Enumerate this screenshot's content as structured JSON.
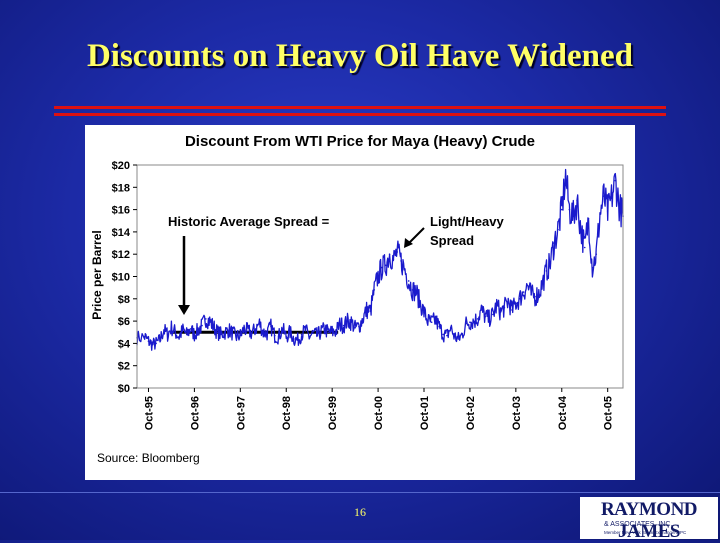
{
  "slide": {
    "title": "Discounts on Heavy Oil Have Widened",
    "page_number": "16",
    "logo": {
      "main": "RAYMOND JAMES",
      "sub": "& ASSOCIATES, INC.",
      "tagline": "Member New York Stock Exchange/SIPC"
    }
  },
  "colors": {
    "title": "#ffff66",
    "rule": "#dd1111",
    "series": "#1a1acc",
    "average_line": "#000000"
  },
  "chart_data": {
    "type": "line",
    "title": "Discount From WTI Price for Maya (Heavy) Crude",
    "xlabel": "",
    "ylabel": "Price per Barrel",
    "source": "Source: Bloomberg",
    "ylim": [
      0,
      20
    ],
    "yticks": [
      "$20",
      "$18",
      "$16",
      "$14",
      "$12",
      "$10",
      "$8",
      "$6",
      "$4",
      "$2",
      "$0"
    ],
    "xticks": [
      "Oct-95",
      "Oct-96",
      "Oct-97",
      "Oct-98",
      "Oct-99",
      "Oct-00",
      "Oct-01",
      "Oct-02",
      "Oct-03",
      "Oct-04",
      "Oct-05"
    ],
    "annotations": {
      "historic": "Historic Average Spread =",
      "spread_line1": "Light/Heavy",
      "spread_line2": "Spread"
    },
    "average_spread": {
      "value": 5.0,
      "from": "Oct-96",
      "to": "Oct-99"
    },
    "series": [
      {
        "values": [
          [
            "1995-07",
            4.5
          ],
          [
            "1995-09",
            4.6
          ],
          [
            "1995-10",
            4.2
          ],
          [
            "1995-11",
            3.9
          ],
          [
            "1995-12",
            4.0
          ],
          [
            "1996-01",
            4.3
          ],
          [
            "1996-02",
            5.2
          ],
          [
            "1996-03",
            4.8
          ],
          [
            "1996-04",
            5.4
          ],
          [
            "1996-05",
            5.0
          ],
          [
            "1996-06",
            4.6
          ],
          [
            "1996-07",
            5.2
          ],
          [
            "1996-08",
            4.8
          ],
          [
            "1996-09",
            5.3
          ],
          [
            "1996-10",
            4.8
          ],
          [
            "1996-11",
            5.2
          ],
          [
            "1996-12",
            5.6
          ],
          [
            "1997-01",
            6.2
          ],
          [
            "1997-02",
            6.0
          ],
          [
            "1997-03",
            5.5
          ],
          [
            "1997-04",
            5.0
          ],
          [
            "1997-05",
            4.8
          ],
          [
            "1997-06",
            5.0
          ],
          [
            "1997-07",
            5.2
          ],
          [
            "1997-08",
            4.9
          ],
          [
            "1997-09",
            4.6
          ],
          [
            "1997-10",
            4.7
          ],
          [
            "1997-11",
            5.3
          ],
          [
            "1997-12",
            5.1
          ],
          [
            "1998-01",
            4.9
          ],
          [
            "1998-02",
            5.3
          ],
          [
            "1998-03",
            5.8
          ],
          [
            "1998-04",
            5.0
          ],
          [
            "1998-05",
            4.9
          ],
          [
            "1998-06",
            5.5
          ],
          [
            "1998-07",
            4.7
          ],
          [
            "1998-08",
            4.6
          ],
          [
            "1998-09",
            5.3
          ],
          [
            "1998-10",
            4.6
          ],
          [
            "1998-11",
            5.0
          ],
          [
            "1998-12",
            4.4
          ],
          [
            "1999-01",
            4.3
          ],
          [
            "1999-02",
            4.8
          ],
          [
            "1999-03",
            5.2
          ],
          [
            "1999-04",
            4.6
          ],
          [
            "1999-05",
            4.9
          ],
          [
            "1999-06",
            4.7
          ],
          [
            "1999-07",
            5.0
          ],
          [
            "1999-08",
            5.3
          ],
          [
            "1999-09",
            5.0
          ],
          [
            "1999-10",
            5.0
          ],
          [
            "1999-11",
            5.1
          ],
          [
            "1999-12",
            5.7
          ],
          [
            "2000-01",
            5.6
          ],
          [
            "2000-02",
            6.0
          ],
          [
            "2000-03",
            5.9
          ],
          [
            "2000-04",
            5.4
          ],
          [
            "2000-05",
            5.5
          ],
          [
            "2000-06",
            6.2
          ],
          [
            "2000-07",
            7.0
          ],
          [
            "2000-08",
            6.9
          ],
          [
            "2000-09",
            8.8
          ],
          [
            "2000-10",
            10.0
          ],
          [
            "2000-11",
            10.8
          ],
          [
            "2000-12",
            11.0
          ],
          [
            "2001-01",
            12.0
          ],
          [
            "2001-02",
            11.5
          ],
          [
            "2001-03",
            12.2
          ],
          [
            "2001-04",
            11.4
          ],
          [
            "2001-05",
            10.6
          ],
          [
            "2001-06",
            9.6
          ],
          [
            "2001-07",
            8.8
          ],
          [
            "2001-08",
            8.6
          ],
          [
            "2001-09",
            7.6
          ],
          [
            "2001-10",
            6.8
          ],
          [
            "2001-11",
            6.0
          ],
          [
            "2001-12",
            5.9
          ],
          [
            "2002-01",
            6.1
          ],
          [
            "2002-02",
            5.5
          ],
          [
            "2002-03",
            4.8
          ],
          [
            "2002-04",
            4.7
          ],
          [
            "2002-05",
            5.4
          ],
          [
            "2002-06",
            4.6
          ],
          [
            "2002-07",
            4.4
          ],
          [
            "2002-08",
            4.8
          ],
          [
            "2002-09",
            5.8
          ],
          [
            "2002-10",
            5.9
          ],
          [
            "2002-11",
            6.0
          ],
          [
            "2002-12",
            6.2
          ],
          [
            "2003-01",
            7.0
          ],
          [
            "2003-02",
            6.4
          ],
          [
            "2003-03",
            6.2
          ],
          [
            "2003-04",
            6.6
          ],
          [
            "2003-05",
            7.4
          ],
          [
            "2003-06",
            6.8
          ],
          [
            "2003-07",
            7.2
          ],
          [
            "2003-08",
            7.8
          ],
          [
            "2003-09",
            7.0
          ],
          [
            "2003-10",
            7.6
          ],
          [
            "2003-11",
            8.0
          ],
          [
            "2003-12",
            8.6
          ],
          [
            "2004-01",
            9.2
          ],
          [
            "2004-02",
            8.4
          ],
          [
            "2004-03",
            8.2
          ],
          [
            "2004-04",
            8.5
          ],
          [
            "2004-05",
            9.4
          ],
          [
            "2004-06",
            10.5
          ],
          [
            "2004-07",
            11.2
          ],
          [
            "2004-08",
            13.0
          ],
          [
            "2004-09",
            14.2
          ],
          [
            "2004-10",
            16.0
          ],
          [
            "2004-11",
            19.0
          ],
          [
            "2004-12",
            16.0
          ],
          [
            "2005-01",
            15.4
          ],
          [
            "2005-02",
            16.8
          ],
          [
            "2005-03",
            14.2
          ],
          [
            "2005-04",
            12.6
          ],
          [
            "2005-05",
            15.2
          ],
          [
            "2005-06",
            10.8
          ],
          [
            "2005-07",
            12.0
          ],
          [
            "2005-08",
            15.6
          ],
          [
            "2005-09",
            17.2
          ],
          [
            "2005-10",
            15.8
          ],
          [
            "2005-11",
            17.0
          ],
          [
            "2005-12",
            18.6
          ],
          [
            "2006-01",
            16.4
          ],
          [
            "2006-02",
            15.4
          ]
        ]
      }
    ]
  }
}
